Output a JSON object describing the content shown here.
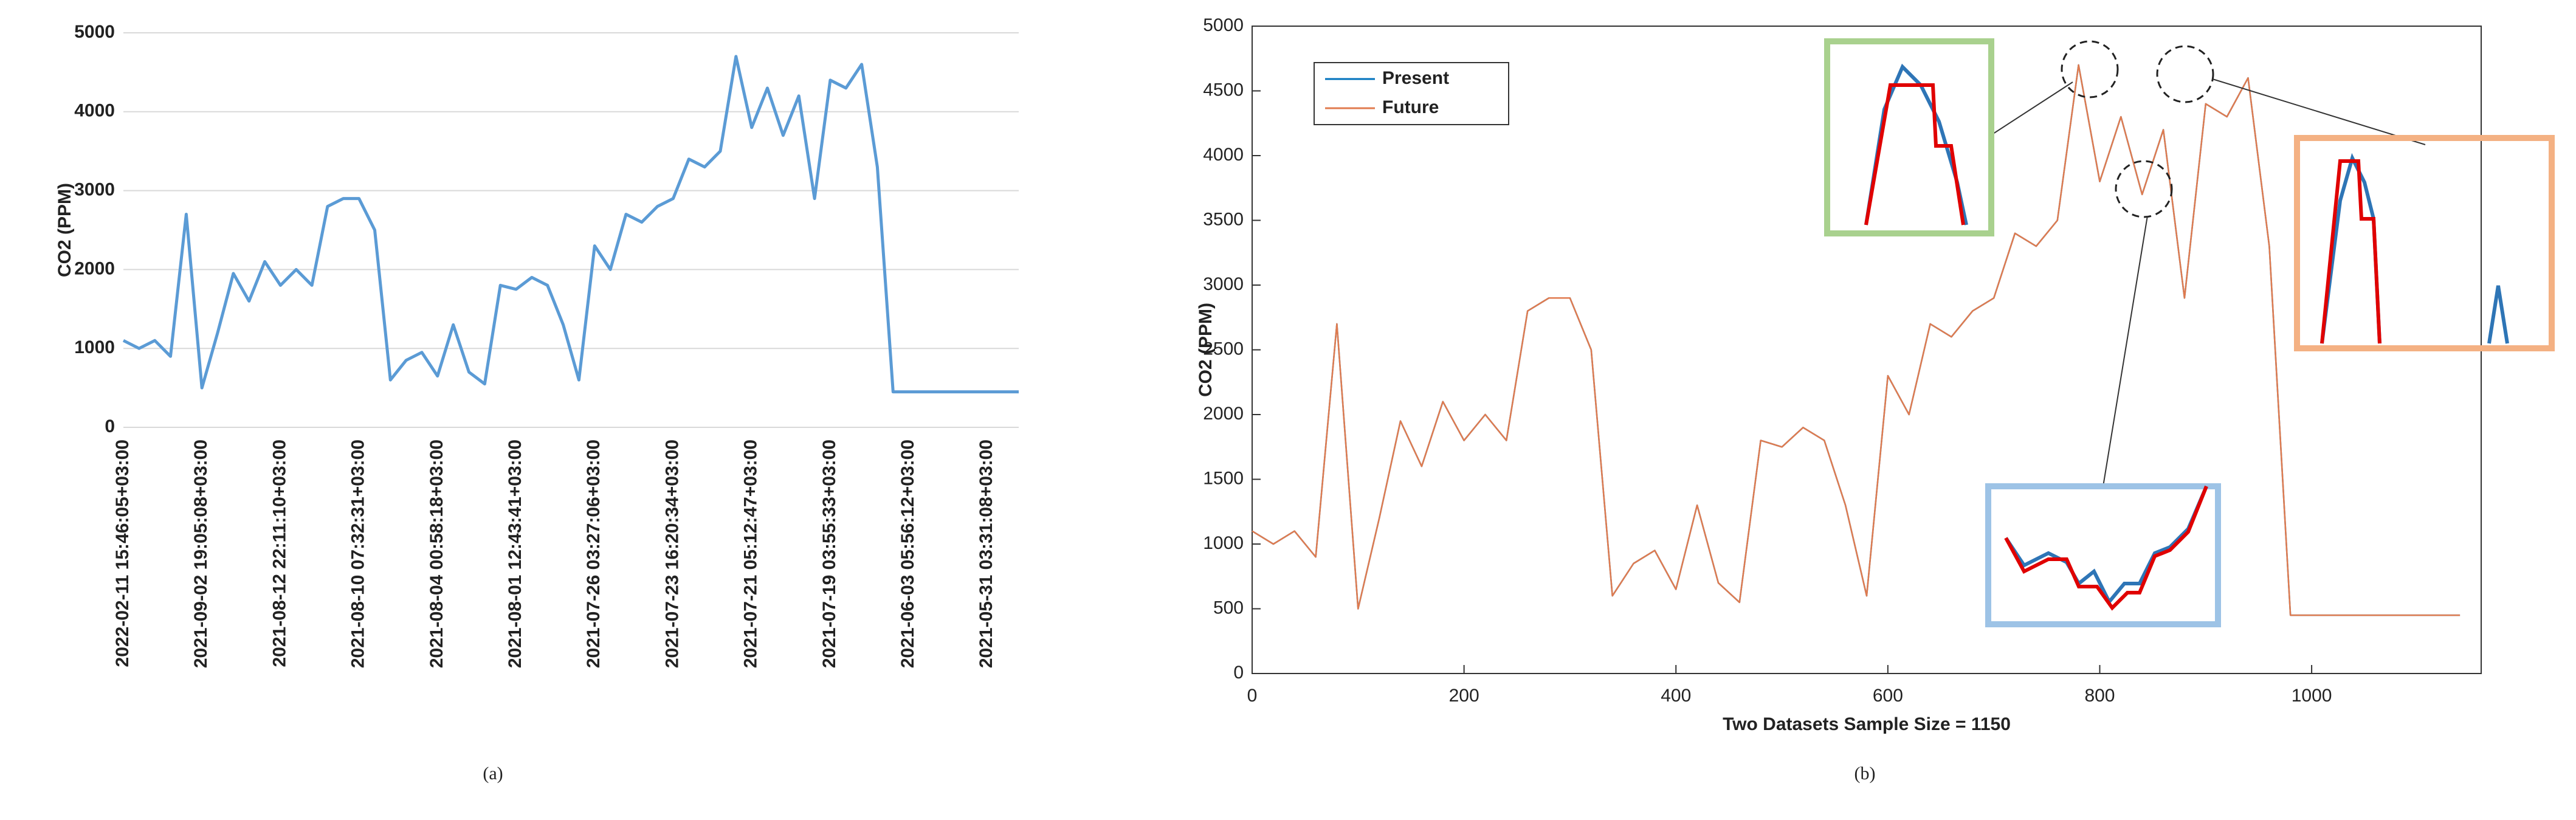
{
  "chart_data": [
    {
      "type": "line",
      "title": "(a)",
      "y_label": "CO2 (PPM)",
      "categories": [
        "2022-02-11 15:46:05+03:00",
        null,
        null,
        null,
        null,
        "2021-09-02 19:05:08+03:00",
        null,
        null,
        null,
        null,
        "2021-08-12 22:11:10+03:00",
        null,
        null,
        null,
        null,
        "2021-08-10 07:32:31+03:00",
        null,
        null,
        null,
        null,
        "2021-08-04 00:58:18+03:00",
        null,
        null,
        null,
        null,
        "2021-08-01 12:43:41+03:00",
        null,
        null,
        null,
        null,
        "2021-07-26 03:27:06+03:00",
        null,
        null,
        null,
        null,
        "2021-07-23 16:20:34+03:00",
        null,
        null,
        null,
        null,
        "2021-07-21 05:12:47+03:00",
        null,
        null,
        null,
        null,
        "2021-07-19 03:55:33+03:00",
        null,
        null,
        null,
        null,
        "2021-06-03 05:56:12+03:00",
        null,
        null,
        null,
        null,
        "2021-05-31 03:31:08+03:00",
        null,
        null
      ],
      "values": [
        1100,
        1000,
        1100,
        900,
        2700,
        500,
        1200,
        1950,
        1600,
        2100,
        1800,
        2000,
        1800,
        2800,
        2900,
        2900,
        2500,
        600,
        850,
        950,
        650,
        1300,
        700,
        550,
        1800,
        1750,
        1900,
        1800,
        1300,
        600,
        2300,
        2000,
        2700,
        2600,
        2800,
        2900,
        3400,
        3300,
        3500,
        4700,
        3800,
        4300,
        3700,
        4200,
        2900,
        4400,
        4300,
        4600,
        3300,
        450,
        450,
        450,
        450,
        450,
        450,
        450,
        450,
        450
      ],
      "color": "#5b9bd5",
      "ylim": [
        0,
        5000
      ],
      "yticks": [
        0,
        1000,
        2000,
        3000,
        4000,
        5000
      ],
      "grid": true
    },
    {
      "type": "line",
      "title": "(b)",
      "x_label": "Two Datasets Sample Size = 1150",
      "y_label": "CO2 (PPM)",
      "x": [
        0,
        20,
        40,
        60,
        80,
        100,
        120,
        140,
        160,
        180,
        200,
        220,
        240,
        260,
        280,
        300,
        320,
        340,
        360,
        380,
        400,
        420,
        440,
        460,
        480,
        500,
        520,
        540,
        560,
        580,
        600,
        620,
        640,
        660,
        680,
        700,
        720,
        740,
        760,
        780,
        800,
        820,
        840,
        860,
        880,
        900,
        920,
        940,
        960,
        980,
        1000,
        1020,
        1040,
        1060,
        1080,
        1100,
        1120,
        1140
      ],
      "series": [
        {
          "name": "Present",
          "color": "#0072bd",
          "values": [
            1100,
            1000,
            1100,
            900,
            2700,
            500,
            1200,
            1950,
            1600,
            2100,
            1800,
            2000,
            1800,
            2800,
            2900,
            2900,
            2500,
            600,
            850,
            950,
            650,
            1300,
            700,
            550,
            1800,
            1750,
            1900,
            1800,
            1300,
            600,
            2300,
            2000,
            2700,
            2600,
            2800,
            2900,
            3400,
            3300,
            3500,
            4700,
            3800,
            4300,
            3700,
            4200,
            2900,
            4400,
            4300,
            4600,
            3300,
            450,
            450,
            450,
            450,
            450,
            450,
            450,
            450,
            450
          ]
        },
        {
          "name": "Future",
          "color": "#e07b4f",
          "values": [
            1100,
            1000,
            1100,
            900,
            2700,
            500,
            1200,
            1950,
            1600,
            2100,
            1800,
            2000,
            1800,
            2800,
            2900,
            2900,
            2500,
            600,
            850,
            950,
            650,
            1300,
            700,
            550,
            1800,
            1750,
            1900,
            1800,
            1300,
            600,
            2300,
            2000,
            2700,
            2600,
            2800,
            2900,
            3400,
            3300,
            3500,
            4700,
            3800,
            4300,
            3700,
            4200,
            2900,
            4400,
            4300,
            4600,
            3300,
            450,
            450,
            450,
            450,
            450,
            450,
            450,
            450,
            450
          ]
        }
      ],
      "xlim": [
        0,
        1160
      ],
      "xticks": [
        0,
        200,
        400,
        600,
        800,
        1000
      ],
      "ylim": [
        0,
        5000
      ],
      "yticks": [
        0,
        500,
        1000,
        1500,
        2000,
        2500,
        3000,
        3500,
        4000,
        4500,
        5000
      ],
      "grid": false,
      "box": true,
      "legend": "top-left"
    }
  ]
}
